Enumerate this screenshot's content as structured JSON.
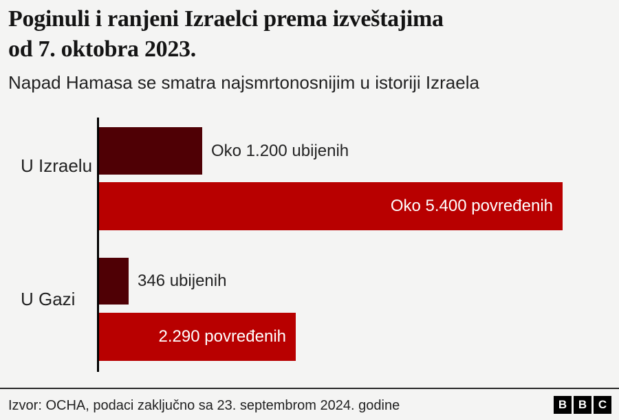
{
  "header": {
    "title_line1": "Poginuli i ranjeni Izraelci prema izveštajima",
    "title_line2": "od 7. oktobra 2023.",
    "subtitle": "Napad Hamasa se smatra najsmrtonosnijim u istoriji Izraela"
  },
  "chart_data": {
    "type": "bar",
    "orientation": "horizontal",
    "title": "Poginuli i ranjeni Izraelci prema izveštajima od 7. oktobra 2023.",
    "subtitle": "Napad Hamasa se smatra najsmrtonosnijim u istoriji Izraela",
    "xlabel": "",
    "ylabel": "",
    "xlim": [
      0,
      5400
    ],
    "grid": false,
    "legend": "none",
    "categories": [
      "U Izraelu",
      "U Gazi"
    ],
    "series": [
      {
        "name": "ubijeni",
        "values": [
          1200,
          346
        ],
        "color": "#4f0005"
      },
      {
        "name": "povređeni",
        "values": [
          5400,
          2290
        ],
        "color": "#b80000"
      }
    ],
    "groups": [
      {
        "category": "U Izraelu",
        "bars": [
          {
            "name": "ubijeni-izrael",
            "value": 1200,
            "label": "Oko 1.200 ubijenih",
            "color": "#4f0005",
            "label_inside": false
          },
          {
            "name": "povređeni-izrael",
            "value": 5400,
            "label": "Oko 5.400 povređenih",
            "color": "#b80000",
            "label_inside": true
          }
        ]
      },
      {
        "category": "U Gazi",
        "bars": [
          {
            "name": "ubijeni-gaza",
            "value": 346,
            "label": "346 ubijenih",
            "color": "#4f0005",
            "label_inside": false
          },
          {
            "name": "povređeni-gaza",
            "value": 2290,
            "label": "2.290 povređenih",
            "color": "#b80000",
            "label_inside": true
          }
        ]
      }
    ]
  },
  "footer": {
    "source": "Izvor: OCHA, podaci zaključno sa 23. septembrom 2024. godine",
    "logo_letters": [
      "B",
      "B",
      "C"
    ]
  },
  "colors": {
    "background": "#f4f4f3",
    "killed_bar": "#4f0005",
    "injured_bar": "#b80000",
    "axis": "#000000",
    "text_dark": "#222222",
    "label_on_bar": "#ffffff"
  }
}
